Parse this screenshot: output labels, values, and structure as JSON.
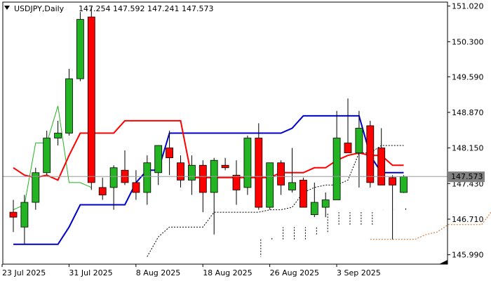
{
  "header": {
    "symbol_label": "USDJPY,Daily",
    "ohlc_text": "147.254 147.592 147.241 147.573"
  },
  "colors": {
    "bull": "#22b422",
    "bear": "#ff0000",
    "tenkan": "#ff0000",
    "kijun": "#0000cc",
    "chikou": "#22b422",
    "span_a": "#d2691e",
    "span_b": "#000000",
    "price_label_bg": "#808080"
  },
  "current_price": {
    "value": 147.573,
    "label": "147.573"
  },
  "chart_data": {
    "type": "candlestick",
    "ylim": [
      145.8,
      151.1
    ],
    "y_ticks": [
      "151.020",
      "150.300",
      "149.590",
      "148.870",
      "148.150",
      "147.430",
      "146.710",
      "145.990"
    ],
    "x_tick_labels": [
      {
        "index": 0,
        "label": "23 Jul 2025"
      },
      {
        "index": 6,
        "label": "31 Jul 2025"
      },
      {
        "index": 12,
        "label": "8 Aug 2025"
      },
      {
        "index": 18,
        "label": "18 Aug 2025"
      },
      {
        "index": 24,
        "label": "26 Aug 2025"
      },
      {
        "index": 30,
        "label": "3 Sep 2025"
      }
    ],
    "candles": [
      {
        "o": 146.85,
        "h": 147.1,
        "l": 146.45,
        "c": 146.75
      },
      {
        "o": 146.55,
        "h": 147.2,
        "l": 146.2,
        "c": 147.05
      },
      {
        "o": 147.05,
        "h": 147.75,
        "l": 146.9,
        "c": 147.65
      },
      {
        "o": 147.65,
        "h": 148.5,
        "l": 147.6,
        "c": 148.35
      },
      {
        "o": 148.35,
        "h": 148.7,
        "l": 148.2,
        "c": 148.45
      },
      {
        "o": 148.45,
        "h": 149.75,
        "l": 148.4,
        "c": 149.55
      },
      {
        "o": 149.55,
        "h": 150.9,
        "l": 149.5,
        "c": 150.75
      },
      {
        "o": 150.8,
        "h": 151.0,
        "l": 147.3,
        "c": 147.45
      },
      {
        "o": 147.35,
        "h": 147.55,
        "l": 147.1,
        "c": 147.2
      },
      {
        "o": 147.35,
        "h": 147.8,
        "l": 146.9,
        "c": 147.75
      },
      {
        "o": 147.7,
        "h": 148.1,
        "l": 147.4,
        "c": 147.45
      },
      {
        "o": 147.45,
        "h": 147.7,
        "l": 147.1,
        "c": 147.25
      },
      {
        "o": 147.25,
        "h": 148.0,
        "l": 147.0,
        "c": 147.85
      },
      {
        "o": 147.65,
        "h": 148.2,
        "l": 147.4,
        "c": 148.2
      },
      {
        "o": 148.15,
        "h": 148.5,
        "l": 147.6,
        "c": 147.95
      },
      {
        "o": 147.85,
        "h": 148.0,
        "l": 147.35,
        "c": 147.5
      },
      {
        "o": 147.5,
        "h": 148.0,
        "l": 147.2,
        "c": 147.8
      },
      {
        "o": 147.8,
        "h": 147.9,
        "l": 146.85,
        "c": 147.25
      },
      {
        "o": 147.25,
        "h": 147.95,
        "l": 146.4,
        "c": 147.9
      },
      {
        "o": 147.8,
        "h": 147.95,
        "l": 147.7,
        "c": 147.75
      },
      {
        "o": 147.6,
        "h": 147.9,
        "l": 147.0,
        "c": 147.3
      },
      {
        "o": 147.35,
        "h": 148.4,
        "l": 147.2,
        "c": 148.35
      },
      {
        "o": 148.35,
        "h": 148.65,
        "l": 146.9,
        "c": 146.95
      },
      {
        "o": 146.95,
        "h": 147.85,
        "l": 146.9,
        "c": 147.85
      },
      {
        "o": 147.85,
        "h": 147.9,
        "l": 147.2,
        "c": 147.4
      },
      {
        "o": 147.3,
        "h": 148.15,
        "l": 147.25,
        "c": 147.45
      },
      {
        "o": 147.5,
        "h": 147.55,
        "l": 146.95,
        "c": 146.95
      },
      {
        "o": 146.8,
        "h": 147.45,
        "l": 146.75,
        "c": 147.05
      },
      {
        "o": 146.95,
        "h": 147.25,
        "l": 146.75,
        "c": 147.1
      },
      {
        "o": 147.1,
        "h": 148.9,
        "l": 147.1,
        "c": 148.35
      },
      {
        "o": 148.25,
        "h": 149.15,
        "l": 148.05,
        "c": 148.05
      },
      {
        "o": 148.05,
        "h": 148.9,
        "l": 147.35,
        "c": 148.55
      },
      {
        "o": 148.6,
        "h": 148.7,
        "l": 147.35,
        "c": 147.45
      },
      {
        "o": 148.15,
        "h": 148.55,
        "l": 147.4,
        "c": 147.4
      },
      {
        "o": 147.55,
        "h": 147.6,
        "l": 146.3,
        "c": 147.4
      },
      {
        "o": 147.25,
        "h": 147.6,
        "l": 147.24,
        "c": 147.57
      }
    ],
    "tenkan": [
      147.75,
      147.6,
      147.55,
      147.6,
      147.5,
      148.0,
      148.45,
      148.45,
      148.45,
      148.45,
      148.7,
      148.7,
      148.7,
      148.7,
      148.7,
      148.7,
      147.55,
      147.55,
      147.55,
      147.55,
      147.55,
      147.55,
      147.55,
      147.55,
      147.65,
      147.65,
      147.65,
      147.75,
      147.75,
      147.9,
      148.0,
      148.05,
      148.0,
      148.0,
      147.8,
      147.8
    ],
    "kijun": [
      146.2,
      146.2,
      146.2,
      146.2,
      146.2,
      146.55,
      147.0,
      147.0,
      147.0,
      147.0,
      147.0,
      147.45,
      147.7,
      147.7,
      148.45,
      148.45,
      148.45,
      148.45,
      148.45,
      148.45,
      148.45,
      148.45,
      148.45,
      148.45,
      148.45,
      148.55,
      148.8,
      148.8,
      148.8,
      148.8,
      148.8,
      148.8,
      148.0,
      147.65,
      147.65,
      147.65
    ],
    "chikou": [
      146.9,
      147.0,
      148.25,
      148.25,
      149.0,
      147.45,
      147.45,
      147.35
    ],
    "span_a": [
      146.3,
      146.3,
      146.3,
      146.3,
      146.3,
      146.4,
      146.45,
      146.6,
      146.6,
      146.6,
      146.6,
      146.9,
      146.9,
      146.9
    ],
    "span_b": [
      145.95,
      146.35,
      146.55,
      146.55,
      146.55,
      146.55,
      146.85,
      146.85,
      146.85,
      146.85,
      146.85,
      146.9,
      146.9,
      146.95,
      147.25,
      147.35,
      147.4,
      147.4,
      147.5,
      148.05,
      148.05,
      148.2,
      148.2,
      148.2
    ],
    "cloud_offset": 22
  }
}
